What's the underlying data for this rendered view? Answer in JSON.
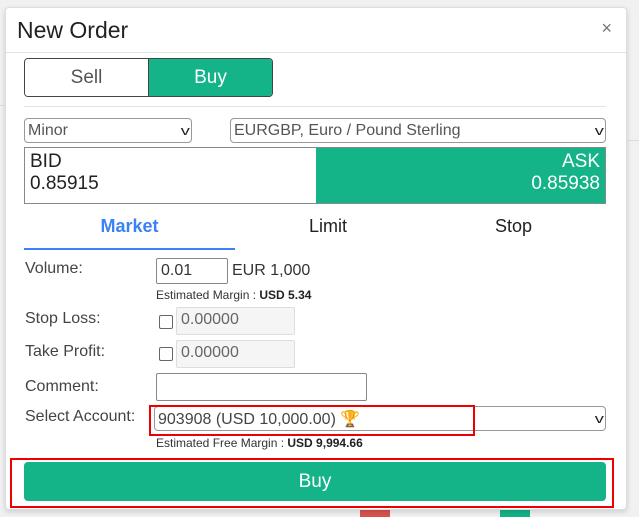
{
  "dialog": {
    "title": "New Order",
    "close": "×"
  },
  "side": {
    "sell": "Sell",
    "buy": "Buy",
    "selected": "Buy"
  },
  "category": {
    "value": "Minor"
  },
  "symbol": {
    "value": "EURGBP, Euro / Pound Sterling"
  },
  "quote": {
    "bid_label": "BID",
    "bid": "0.85915",
    "ask_label": "ASK",
    "ask": "0.85938"
  },
  "tabs": [
    {
      "label": "Market",
      "active": true
    },
    {
      "label": "Limit"
    },
    {
      "label": "Stop"
    }
  ],
  "form": {
    "volume_label": "Volume:",
    "volume": "0.01",
    "volume_unit": "EUR 1,000",
    "margin_label": "Estimated Margin :",
    "margin": "USD 5.34",
    "sl_label": "Stop Loss:",
    "sl": "0.00000",
    "tp_label": "Take Profit:",
    "tp": "0.00000",
    "comment_label": "Comment:",
    "comment": "",
    "account_label": "Select Account:",
    "account": "903908 (USD 10,000.00)",
    "free_margin_label": "Estimated Free Margin :",
    "free_margin": "USD 9,994.66"
  },
  "submit": "Buy",
  "colors": {
    "accent": "#14b388",
    "tab_active": "#3b82f6",
    "highlight": "#ee0000"
  }
}
